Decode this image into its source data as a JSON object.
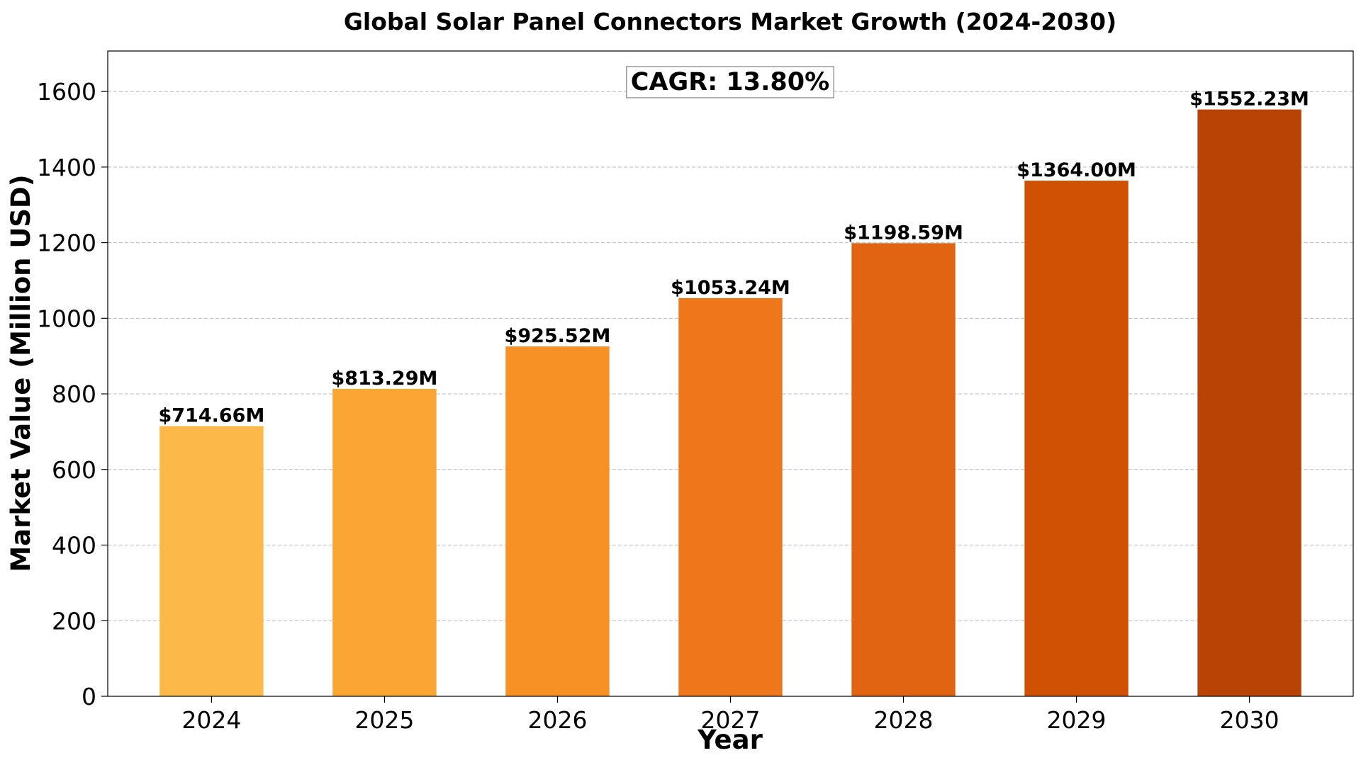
{
  "chart_data": {
    "type": "bar",
    "title": "Global Solar Panel Connectors Market Growth (2024-2030)",
    "xlabel": "Year",
    "ylabel": "Market Value (Million USD)",
    "categories": [
      "2024",
      "2025",
      "2026",
      "2027",
      "2028",
      "2029",
      "2030"
    ],
    "values": [
      714.66,
      813.29,
      925.52,
      1053.24,
      1198.59,
      1364.0,
      1552.23
    ],
    "value_labels": [
      "$714.66M",
      "$813.29M",
      "$925.52M",
      "$1053.24M",
      "$1198.59M",
      "$1364.00M",
      "$1552.23M"
    ],
    "bar_colors": [
      "#FDB84A",
      "#FBA535",
      "#F79126",
      "#EE761B",
      "#E06412",
      "#D15104",
      "#B84304"
    ],
    "ylim": [
      0,
      1707
    ],
    "yticks": [
      0,
      200,
      400,
      600,
      800,
      1000,
      1200,
      1400,
      1600
    ],
    "grid": "y-dashed",
    "annotation": "CAGR: 13.80%"
  }
}
